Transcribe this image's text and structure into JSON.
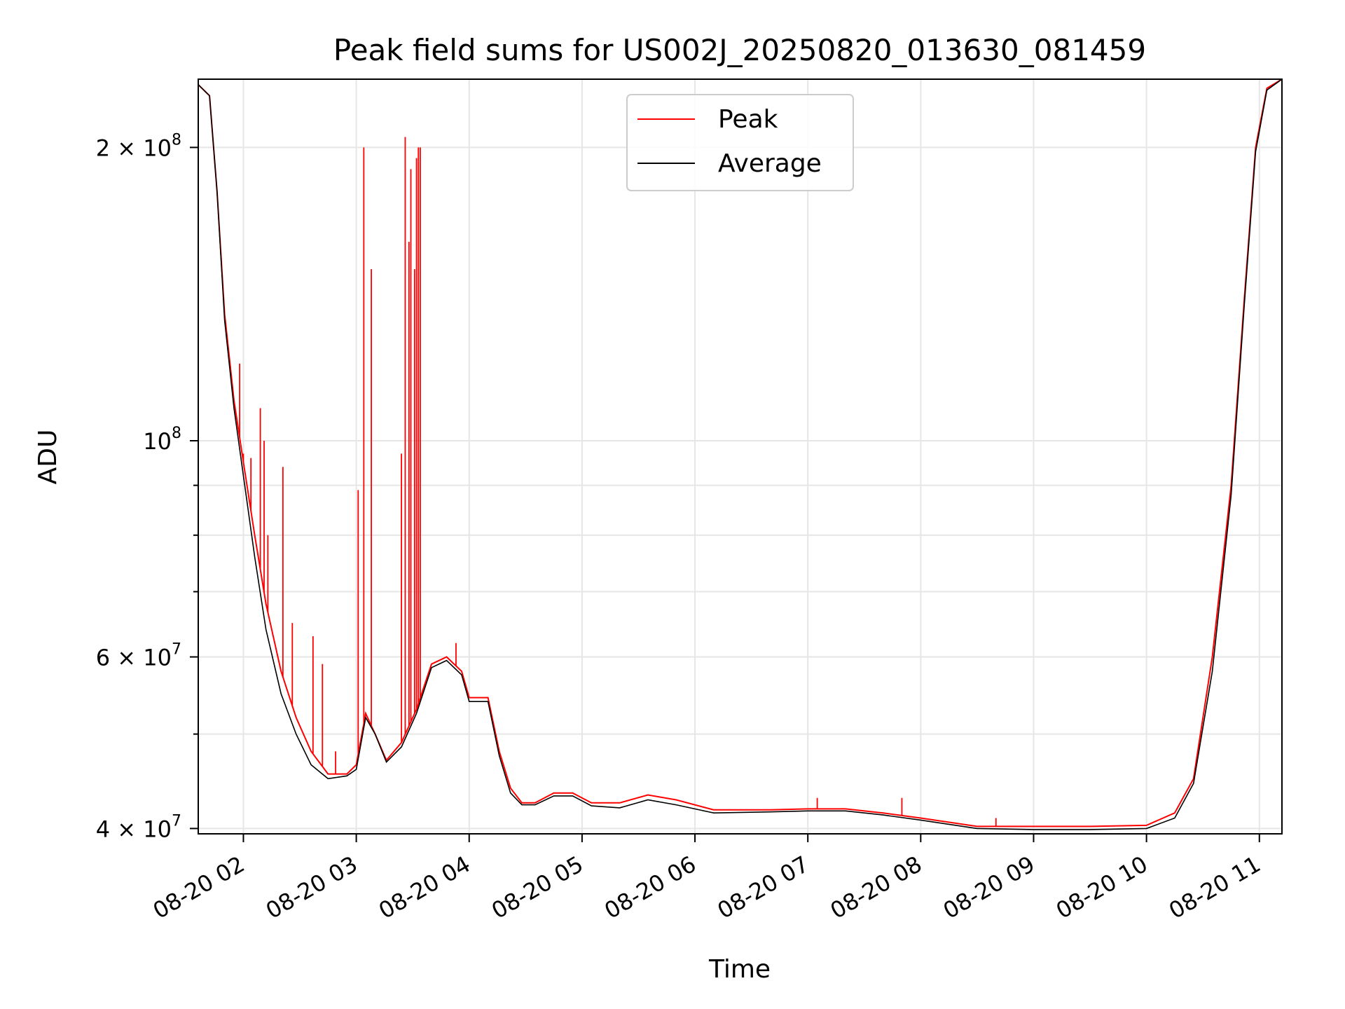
{
  "chart_data": {
    "type": "line",
    "title": "Peak field sums for US002J_20250820_013630_081459",
    "xlabel": "Time",
    "ylabel": "ADU",
    "y_scale": "log",
    "grid": true,
    "legend_placement": "upper-center",
    "xlim": [
      "2025-08-20T01:36",
      "2025-08-20T11:12"
    ],
    "ylim": [
      39500000,
      235000000
    ],
    "x_ticks": [
      {
        "value": "2025-08-20T02:00",
        "label": "08-20 02"
      },
      {
        "value": "2025-08-20T03:00",
        "label": "08-20 03"
      },
      {
        "value": "2025-08-20T04:00",
        "label": "08-20 04"
      },
      {
        "value": "2025-08-20T05:00",
        "label": "08-20 05"
      },
      {
        "value": "2025-08-20T06:00",
        "label": "08-20 06"
      },
      {
        "value": "2025-08-20T07:00",
        "label": "08-20 07"
      },
      {
        "value": "2025-08-20T08:00",
        "label": "08-20 08"
      },
      {
        "value": "2025-08-20T09:00",
        "label": "08-20 09"
      },
      {
        "value": "2025-08-20T10:00",
        "label": "08-20 10"
      },
      {
        "value": "2025-08-20T11:00",
        "label": "08-20 11"
      }
    ],
    "y_major_ticks": [
      {
        "value": 40000000,
        "base": "4 × 10",
        "exp": "7"
      },
      {
        "value": 60000000,
        "base": "6 × 10",
        "exp": "7"
      },
      {
        "value": 100000000,
        "base": "10",
        "exp": "8"
      },
      {
        "value": 200000000,
        "base": "2 × 10",
        "exp": "8"
      }
    ],
    "y_minor_ticks": [
      50000000,
      70000000,
      80000000,
      90000000
    ],
    "series": [
      {
        "name": "Peak",
        "color": "#ff0000",
        "points": [
          [
            "2025-08-20T01:36",
            232000000
          ],
          [
            "2025-08-20T01:42",
            226000000
          ],
          [
            "2025-08-20T01:46",
            180000000
          ],
          [
            "2025-08-20T01:50",
            135000000
          ],
          [
            "2025-08-20T01:55",
            110000000
          ],
          [
            "2025-08-20T02:00",
            95000000
          ],
          [
            "2025-08-20T02:06",
            80000000
          ],
          [
            "2025-08-20T02:12",
            68000000
          ],
          [
            "2025-08-20T02:20",
            58000000
          ],
          [
            "2025-08-20T02:28",
            52000000
          ],
          [
            "2025-08-20T02:36",
            48000000
          ],
          [
            "2025-08-20T02:45",
            45500000
          ],
          [
            "2025-08-20T02:55",
            45500000
          ],
          [
            "2025-08-20T03:00",
            46500000
          ],
          [
            "2025-08-20T03:05",
            52500000
          ],
          [
            "2025-08-20T03:10",
            50000000
          ],
          [
            "2025-08-20T03:16",
            47000000
          ],
          [
            "2025-08-20T03:24",
            49000000
          ],
          [
            "2025-08-20T03:32",
            53000000
          ],
          [
            "2025-08-20T03:40",
            59000000
          ],
          [
            "2025-08-20T03:48",
            60000000
          ],
          [
            "2025-08-20T03:56",
            58000000
          ],
          [
            "2025-08-20T04:00",
            54500000
          ],
          [
            "2025-08-20T04:10",
            54500000
          ],
          [
            "2025-08-20T04:16",
            48000000
          ],
          [
            "2025-08-20T04:22",
            44000000
          ],
          [
            "2025-08-20T04:28",
            42500000
          ],
          [
            "2025-08-20T04:35",
            42500000
          ],
          [
            "2025-08-20T04:45",
            43500000
          ],
          [
            "2025-08-20T04:55",
            43500000
          ],
          [
            "2025-08-20T05:05",
            42500000
          ],
          [
            "2025-08-20T05:20",
            42500000
          ],
          [
            "2025-08-20T05:35",
            43300000
          ],
          [
            "2025-08-20T05:50",
            42800000
          ],
          [
            "2025-08-20T06:10",
            41800000
          ],
          [
            "2025-08-20T06:40",
            41800000
          ],
          [
            "2025-08-20T07:00",
            41900000
          ],
          [
            "2025-08-20T07:20",
            41900000
          ],
          [
            "2025-08-20T07:40",
            41500000
          ],
          [
            "2025-08-20T08:00",
            41000000
          ],
          [
            "2025-08-20T08:30",
            40200000
          ],
          [
            "2025-08-20T09:00",
            40200000
          ],
          [
            "2025-08-20T09:30",
            40200000
          ],
          [
            "2025-08-20T10:00",
            40300000
          ],
          [
            "2025-08-20T10:15",
            41500000
          ],
          [
            "2025-08-20T10:25",
            45000000
          ],
          [
            "2025-08-20T10:35",
            60000000
          ],
          [
            "2025-08-20T10:45",
            90000000
          ],
          [
            "2025-08-20T10:52",
            140000000
          ],
          [
            "2025-08-20T10:58",
            200000000
          ],
          [
            "2025-08-20T11:04",
            230000000
          ],
          [
            "2025-08-20T11:12",
            235000000
          ]
        ],
        "spikes": [
          [
            "2025-08-20T01:58",
            120000000
          ],
          [
            "2025-08-20T02:00",
            97000000
          ],
          [
            "2025-08-20T02:04",
            96000000
          ],
          [
            "2025-08-20T02:09",
            108000000
          ],
          [
            "2025-08-20T02:11",
            100000000
          ],
          [
            "2025-08-20T02:13",
            80000000
          ],
          [
            "2025-08-20T02:21",
            94000000
          ],
          [
            "2025-08-20T02:26",
            65000000
          ],
          [
            "2025-08-20T02:37",
            63000000
          ],
          [
            "2025-08-20T02:42",
            59000000
          ],
          [
            "2025-08-20T02:49",
            48000000
          ],
          [
            "2025-08-20T03:01",
            89000000
          ],
          [
            "2025-08-20T03:04",
            200000000
          ],
          [
            "2025-08-20T03:08",
            150000000
          ],
          [
            "2025-08-20T03:24",
            97000000
          ],
          [
            "2025-08-20T03:26",
            205000000
          ],
          [
            "2025-08-20T03:28",
            160000000
          ],
          [
            "2025-08-20T03:29",
            190000000
          ],
          [
            "2025-08-20T03:31",
            150000000
          ],
          [
            "2025-08-20T03:32",
            195000000
          ],
          [
            "2025-08-20T03:33",
            200000000
          ],
          [
            "2025-08-20T03:34",
            200000000
          ],
          [
            "2025-08-20T03:53",
            62000000
          ],
          [
            "2025-08-20T07:05",
            43000000
          ],
          [
            "2025-08-20T07:50",
            43000000
          ],
          [
            "2025-08-20T08:40",
            41000000
          ]
        ]
      },
      {
        "name": "Average",
        "color": "#000000",
        "points": [
          [
            "2025-08-20T01:36",
            232000000
          ],
          [
            "2025-08-20T01:42",
            226000000
          ],
          [
            "2025-08-20T01:46",
            180000000
          ],
          [
            "2025-08-20T01:50",
            133000000
          ],
          [
            "2025-08-20T01:55",
            108000000
          ],
          [
            "2025-08-20T02:00",
            92000000
          ],
          [
            "2025-08-20T02:06",
            76000000
          ],
          [
            "2025-08-20T02:12",
            64000000
          ],
          [
            "2025-08-20T02:20",
            55000000
          ],
          [
            "2025-08-20T02:28",
            50000000
          ],
          [
            "2025-08-20T02:36",
            46500000
          ],
          [
            "2025-08-20T02:45",
            45000000
          ],
          [
            "2025-08-20T02:55",
            45300000
          ],
          [
            "2025-08-20T03:00",
            46000000
          ],
          [
            "2025-08-20T03:05",
            52000000
          ],
          [
            "2025-08-20T03:10",
            50000000
          ],
          [
            "2025-08-20T03:16",
            46800000
          ],
          [
            "2025-08-20T03:24",
            48500000
          ],
          [
            "2025-08-20T03:32",
            52500000
          ],
          [
            "2025-08-20T03:40",
            58500000
          ],
          [
            "2025-08-20T03:48",
            59500000
          ],
          [
            "2025-08-20T03:56",
            57500000
          ],
          [
            "2025-08-20T04:00",
            54000000
          ],
          [
            "2025-08-20T04:10",
            54000000
          ],
          [
            "2025-08-20T04:16",
            47500000
          ],
          [
            "2025-08-20T04:22",
            43500000
          ],
          [
            "2025-08-20T04:28",
            42300000
          ],
          [
            "2025-08-20T04:35",
            42300000
          ],
          [
            "2025-08-20T04:45",
            43200000
          ],
          [
            "2025-08-20T04:55",
            43200000
          ],
          [
            "2025-08-20T05:05",
            42200000
          ],
          [
            "2025-08-20T05:20",
            42000000
          ],
          [
            "2025-08-20T05:35",
            42800000
          ],
          [
            "2025-08-20T05:50",
            42300000
          ],
          [
            "2025-08-20T06:10",
            41500000
          ],
          [
            "2025-08-20T06:40",
            41600000
          ],
          [
            "2025-08-20T07:00",
            41700000
          ],
          [
            "2025-08-20T07:20",
            41700000
          ],
          [
            "2025-08-20T07:40",
            41300000
          ],
          [
            "2025-08-20T08:00",
            40800000
          ],
          [
            "2025-08-20T08:30",
            40000000
          ],
          [
            "2025-08-20T09:00",
            39900000
          ],
          [
            "2025-08-20T09:30",
            39900000
          ],
          [
            "2025-08-20T10:00",
            40000000
          ],
          [
            "2025-08-20T10:15",
            41000000
          ],
          [
            "2025-08-20T10:25",
            44500000
          ],
          [
            "2025-08-20T10:35",
            58000000
          ],
          [
            "2025-08-20T10:45",
            88000000
          ],
          [
            "2025-08-20T10:52",
            138000000
          ],
          [
            "2025-08-20T10:58",
            198000000
          ],
          [
            "2025-08-20T11:04",
            229000000
          ],
          [
            "2025-08-20T11:12",
            235000000
          ]
        ]
      }
    ]
  }
}
